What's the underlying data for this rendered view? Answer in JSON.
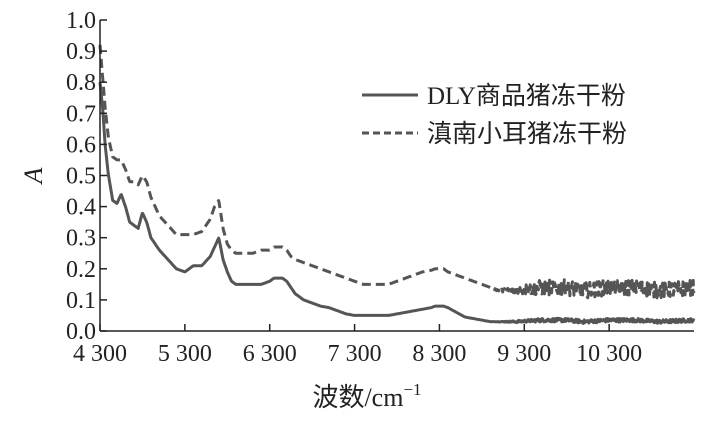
{
  "chart_data": {
    "type": "line",
    "xlabel": "波数/cm",
    "xlabel_sup": "−1",
    "ylabel": "A",
    "xlim": [
      4300,
      11300
    ],
    "ylim": [
      0.0,
      1.0
    ],
    "x_ticks": [
      4300,
      5300,
      6300,
      7300,
      8300,
      9300,
      10300
    ],
    "x_tick_labels": [
      "4 300",
      "5 300",
      "6 300",
      "7 300",
      "8 300",
      "9 300",
      "10 300"
    ],
    "y_ticks": [
      0.0,
      0.1,
      0.2,
      0.3,
      0.4,
      0.5,
      0.6,
      0.7,
      0.8,
      0.9,
      1.0
    ],
    "y_tick_labels": [
      "0.0",
      "0.1",
      "0.2",
      "0.3",
      "0.4",
      "0.5",
      "0.6",
      "0.7",
      "0.8",
      "0.9",
      "1.0"
    ],
    "grid": false,
    "legend_position": "top-right",
    "series": [
      {
        "name": "DLY商品猪冻干粉",
        "style": "solid",
        "color": "#555555",
        "x": [
          4300,
          4330,
          4360,
          4400,
          4450,
          4500,
          4550,
          4600,
          4650,
          4700,
          4750,
          4800,
          4850,
          4900,
          4950,
          5000,
          5100,
          5200,
          5300,
          5400,
          5500,
          5600,
          5650,
          5700,
          5750,
          5800,
          5850,
          5900,
          6000,
          6100,
          6200,
          6300,
          6350,
          6400,
          6450,
          6500,
          6550,
          6600,
          6700,
          6800,
          6900,
          7000,
          7100,
          7200,
          7300,
          7400,
          7500,
          7600,
          7700,
          7800,
          7900,
          8000,
          8100,
          8200,
          8250,
          8300,
          8350,
          8400,
          8500,
          8600,
          8700,
          8800,
          8900,
          9000,
          9200,
          9500,
          9800,
          10000,
          10300,
          10600,
          10900,
          11300
        ],
        "y": [
          0.8,
          0.72,
          0.6,
          0.5,
          0.42,
          0.41,
          0.44,
          0.4,
          0.35,
          0.34,
          0.33,
          0.38,
          0.35,
          0.3,
          0.28,
          0.26,
          0.23,
          0.2,
          0.19,
          0.21,
          0.21,
          0.24,
          0.27,
          0.3,
          0.23,
          0.19,
          0.16,
          0.15,
          0.15,
          0.15,
          0.15,
          0.16,
          0.17,
          0.17,
          0.17,
          0.16,
          0.14,
          0.12,
          0.1,
          0.09,
          0.08,
          0.075,
          0.065,
          0.055,
          0.05,
          0.05,
          0.05,
          0.05,
          0.05,
          0.055,
          0.06,
          0.065,
          0.07,
          0.075,
          0.08,
          0.08,
          0.08,
          0.075,
          0.06,
          0.045,
          0.04,
          0.035,
          0.03,
          0.03,
          0.03,
          0.035,
          0.035,
          0.03,
          0.035,
          0.035,
          0.03,
          0.035
        ]
      },
      {
        "name": "滇南小耳猪冻干粉",
        "style": "dashed",
        "color": "#555555",
        "x": [
          4300,
          4330,
          4360,
          4400,
          4450,
          4500,
          4550,
          4600,
          4650,
          4700,
          4750,
          4800,
          4850,
          4900,
          4950,
          5000,
          5100,
          5200,
          5300,
          5400,
          5500,
          5600,
          5650,
          5700,
          5750,
          5800,
          5850,
          5900,
          6000,
          6100,
          6200,
          6300,
          6350,
          6400,
          6450,
          6500,
          6550,
          6600,
          6700,
          6800,
          6900,
          7000,
          7100,
          7200,
          7300,
          7400,
          7500,
          7600,
          7700,
          7800,
          7900,
          8000,
          8100,
          8200,
          8250,
          8300,
          8350,
          8400,
          8500,
          8600,
          8700,
          8800,
          8900,
          9000,
          9200,
          9500,
          9800,
          10000,
          10300,
          10600,
          10900,
          11300
        ],
        "y": [
          0.92,
          0.82,
          0.72,
          0.62,
          0.56,
          0.55,
          0.55,
          0.52,
          0.48,
          0.48,
          0.47,
          0.5,
          0.48,
          0.43,
          0.4,
          0.37,
          0.34,
          0.31,
          0.31,
          0.31,
          0.32,
          0.36,
          0.4,
          0.42,
          0.33,
          0.28,
          0.26,
          0.25,
          0.25,
          0.25,
          0.26,
          0.26,
          0.27,
          0.27,
          0.27,
          0.26,
          0.24,
          0.23,
          0.22,
          0.21,
          0.2,
          0.19,
          0.18,
          0.17,
          0.16,
          0.15,
          0.15,
          0.15,
          0.15,
          0.16,
          0.17,
          0.18,
          0.19,
          0.195,
          0.2,
          0.2,
          0.2,
          0.19,
          0.18,
          0.17,
          0.16,
          0.15,
          0.14,
          0.13,
          0.13,
          0.14,
          0.14,
          0.13,
          0.14,
          0.14,
          0.13,
          0.14
        ]
      }
    ]
  }
}
